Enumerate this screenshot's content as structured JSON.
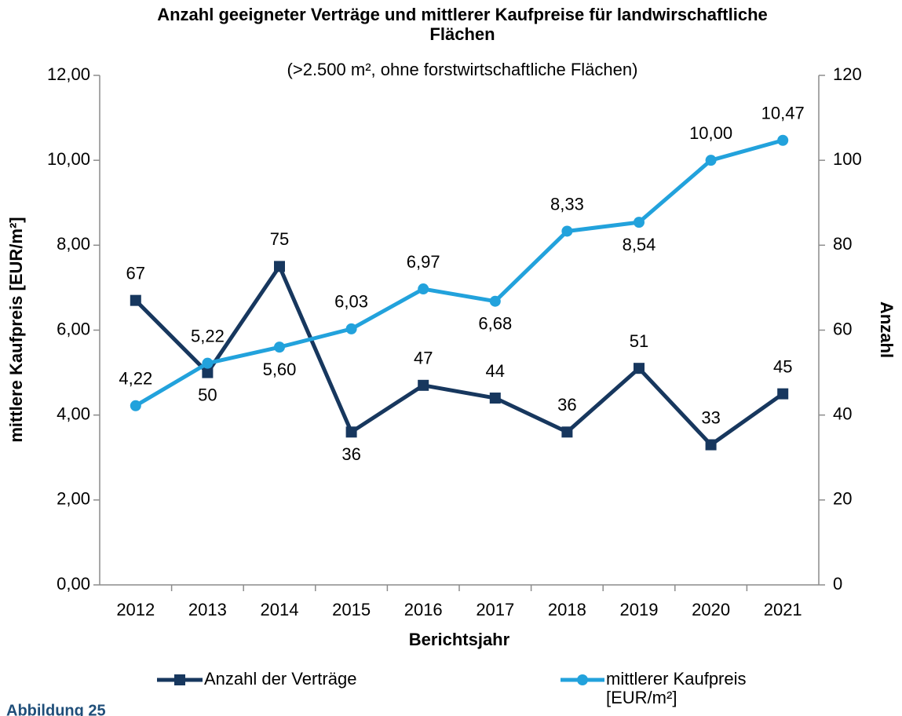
{
  "chart_data": {
    "type": "line",
    "title": "Anzahl geeigneter Verträge und mittlerer Kaufpreise für landwirschaftliche Flächen",
    "subtitle": "(>2.500 m², ohne forstwirtschaftliche Flächen)",
    "x_label": "Berichtsjahr",
    "y_label": "mittlere Kaufpreis [EUR/m²]",
    "y2_label": "Anzahl",
    "caption": "Abbildung 25",
    "categories": [
      "2012",
      "2013",
      "2014",
      "2015",
      "2016",
      "2017",
      "2018",
      "2019",
      "2020",
      "2021"
    ],
    "ylim": [
      0,
      12
    ],
    "yticks": [
      {
        "value": 0,
        "label": "0,00"
      },
      {
        "value": 2,
        "label": "2,00"
      },
      {
        "value": 4,
        "label": "4,00"
      },
      {
        "value": 6,
        "label": "6,00"
      },
      {
        "value": 8,
        "label": "8,00"
      },
      {
        "value": 10,
        "label": "10,00"
      },
      {
        "value": 12,
        "label": "12,00"
      }
    ],
    "y2lim": [
      0,
      120
    ],
    "y2ticks": [
      0,
      20,
      40,
      60,
      80,
      100,
      120
    ],
    "legend": "bottom",
    "series": [
      {
        "name": "Anzahl der Verträge",
        "color": "#17375e",
        "axis": "y2",
        "marker": "square",
        "values": [
          67,
          50,
          75,
          36,
          47,
          44,
          36,
          51,
          33,
          45
        ]
      },
      {
        "name": "mittlerer Kaufpreis [EUR/m²]",
        "color": "#22a2dc",
        "axis": "y",
        "marker": "circle",
        "values": [
          4.22,
          5.22,
          5.6,
          6.03,
          6.97,
          6.68,
          8.33,
          8.54,
          10.0,
          10.47
        ],
        "value_labels": [
          "4,22",
          "5,22",
          "5,60",
          "6,03",
          "6,97",
          "6,68",
          "8,33",
          "8,54",
          "10,00",
          "10,47"
        ]
      }
    ]
  }
}
